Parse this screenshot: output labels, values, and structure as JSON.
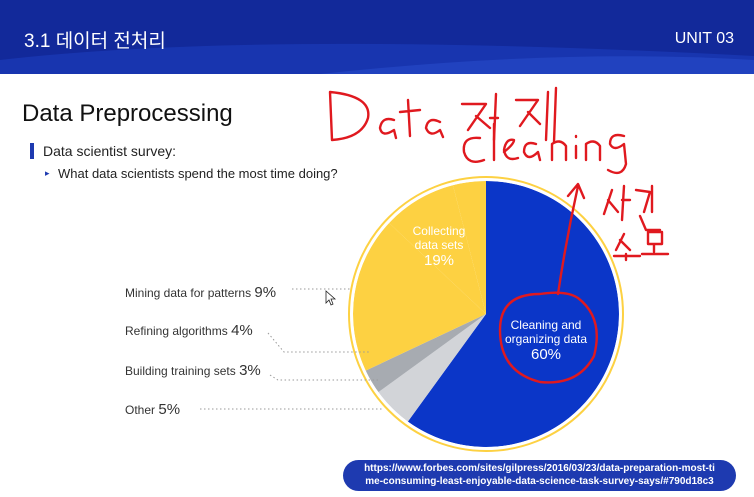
{
  "header": {
    "title": "3.1 데이터 전처리",
    "unit": "UNIT 03"
  },
  "main": {
    "title": "Data Preprocessing",
    "bullet": "Data scientist survey:",
    "sub_bullet": "What data scientists spend the most time doing?"
  },
  "chart_data": {
    "type": "pie",
    "slices": [
      {
        "name": "Cleaning and organizing data",
        "value": 60,
        "color": "#0b36c8",
        "label_lines": [
          "Cleaning and",
          "organizing data"
        ],
        "pct_text": "60%"
      },
      {
        "name": "Other",
        "value": 5,
        "color": "#d2d4d8",
        "label": "Other",
        "pct_text": "5%"
      },
      {
        "name": "Building training sets",
        "value": 3,
        "color": "#a7abb1",
        "label": "Building training sets",
        "pct_text": "3%"
      },
      {
        "name": "Collecting data sets",
        "value": 19,
        "color": "#fdd142",
        "label_lines": [
          "Collecting",
          "data sets"
        ],
        "pct_text": "19%"
      },
      {
        "name": "Mining data for patterns",
        "value": 9,
        "color": "#fdd142",
        "label": "Mining data for patterns",
        "pct_text": "9%"
      },
      {
        "name": "Refining algorithms",
        "value": 4,
        "color": "#fdd142",
        "label": "Refining algorithms",
        "pct_text": "4%"
      }
    ]
  },
  "legend": [
    {
      "label": "Mining data for patterns",
      "pct": "9%"
    },
    {
      "label": "Refining algorithms",
      "pct": "4%"
    },
    {
      "label": "Building training sets",
      "pct": "3%"
    },
    {
      "label": "Other",
      "pct": "5%"
    }
  ],
  "inside_labels": {
    "collecting": {
      "line1": "Collecting",
      "line2": "data sets",
      "pct": "19%"
    },
    "cleaning": {
      "line1": "Cleaning and",
      "line2": "organizing data",
      "pct": "60%"
    }
  },
  "source_url": {
    "line1": "https://www.forbes.com/sites/gilpress/2016/03/23/data-preparation-most-ti",
    "line2": "me-consuming-least-enjoyable-data-science-task-survey-says/#790d18c3"
  },
  "annotations": {
    "handwriting_line1": "Data 정제",
    "handwriting_line2": "cleaning",
    "handwriting_side_1": "시간",
    "handwriting_side_2": "소모"
  },
  "colors": {
    "header_bg": "#12299a",
    "accent": "#1e3ab0",
    "ink": "#e0191f"
  }
}
